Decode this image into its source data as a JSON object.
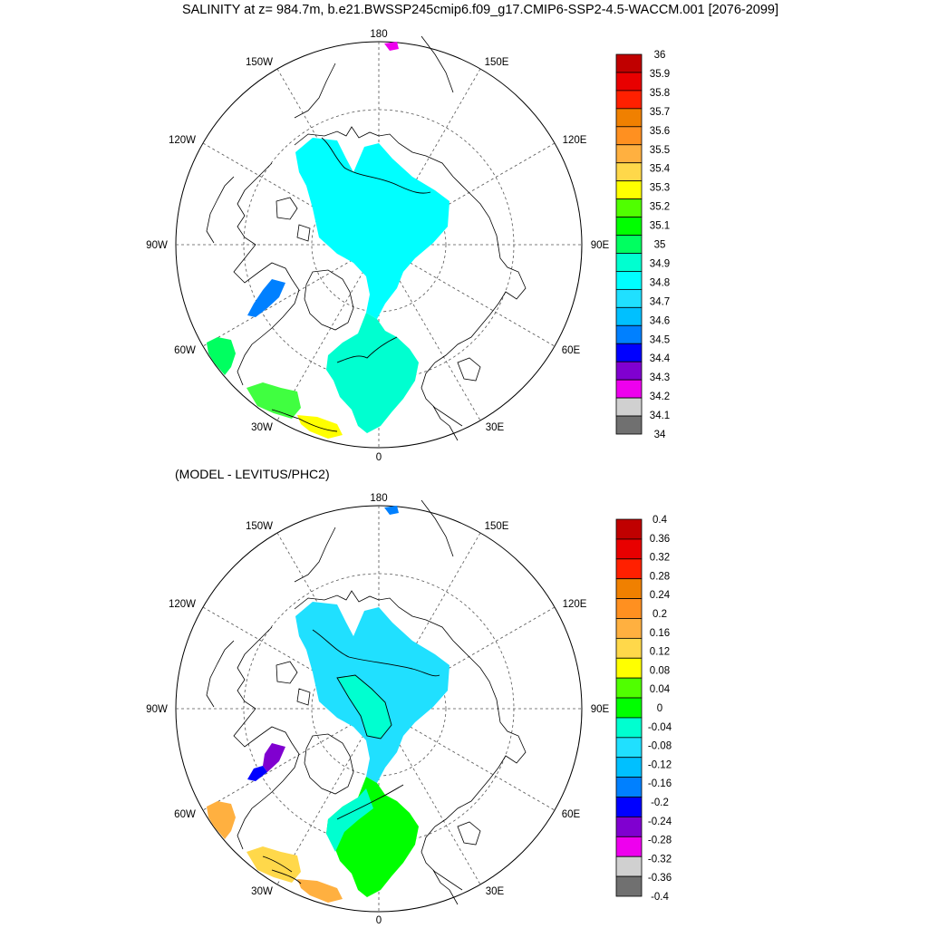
{
  "title": "SALINITY at z= 984.7m, b.e21.BWSSP245cmip6.f09_g17.CMIP6-SSP2-4.5-WACCM.001 [2076-2099]",
  "subtitle": "(MODEL - LEVITUS/PHC2)",
  "map_labels": {
    "lon_180": "180",
    "lon_150W": "150W",
    "lon_150E": "150E",
    "lon_120W": "120W",
    "lon_120E": "120E",
    "lon_90W": "90W",
    "lon_90E": "90E",
    "lon_60W": "60W",
    "lon_60E": "60E",
    "lon_30W": "30W",
    "lon_30E": "30E",
    "lon_0": "0"
  },
  "colorbar_top": {
    "labels": [
      "36",
      "35.9",
      "35.8",
      "35.7",
      "35.6",
      "35.5",
      "35.4",
      "35.3",
      "35.2",
      "35.1",
      "35",
      "34.9",
      "34.8",
      "34.7",
      "34.6",
      "34.5",
      "34.4",
      "34.3",
      "34.2",
      "34.1",
      "34"
    ],
    "colors": [
      "#c00000",
      "#e80000",
      "#ff2000",
      "#f08000",
      "#ff9020",
      "#ffb040",
      "#ffd84a",
      "#ffff00",
      "#50ff00",
      "#00ff00",
      "#00ff60",
      "#00ffd0",
      "#00ffff",
      "#20e0ff",
      "#00c0ff",
      "#0080ff",
      "#0000ff",
      "#8000d0",
      "#ee00ee",
      "#d0d0d0",
      "#707070"
    ]
  },
  "colorbar_bottom": {
    "labels": [
      "0.4",
      "0.36",
      "0.32",
      "0.28",
      "0.24",
      "0.2",
      "0.16",
      "0.12",
      "0.08",
      "0.04",
      "0",
      "-0.04",
      "-0.08",
      "-0.12",
      "-0.16",
      "-0.2",
      "-0.24",
      "-0.28",
      "-0.32",
      "-0.36",
      "-0.4"
    ],
    "colors": [
      "#c00000",
      "#e80000",
      "#ff2000",
      "#f08000",
      "#ff9020",
      "#ffb040",
      "#ffd84a",
      "#ffff00",
      "#50ff00",
      "#00ff00",
      "#00ffd0",
      "#20e0ff",
      "#00c0ff",
      "#0080ff",
      "#0000ff",
      "#8000d0",
      "#ee00ee",
      "#d0d0d0",
      "#707070"
    ]
  },
  "region_colors": {
    "top_arctic": "#00ffff",
    "top_atlantic": "#00ffd0",
    "top_baffin": "#0080ff",
    "top_labrador": "#00ff60",
    "top_green_patch": "#40ff40",
    "top_yellow_patch": "#ffff00",
    "top_bering": "#ee00ee",
    "bot_arctic": "#20e0ff",
    "bot_atlantic": "#00ff00",
    "bot_baffin": "#8000d0",
    "bot_baffin_tip": "#0000ff",
    "bot_labrador": "#ffb040",
    "bot_orange_patch": "#ffb040",
    "bot_yellow_patch": "#ffd84a",
    "bot_bering": "#0080ff",
    "bot_core": "#00ffd0"
  }
}
